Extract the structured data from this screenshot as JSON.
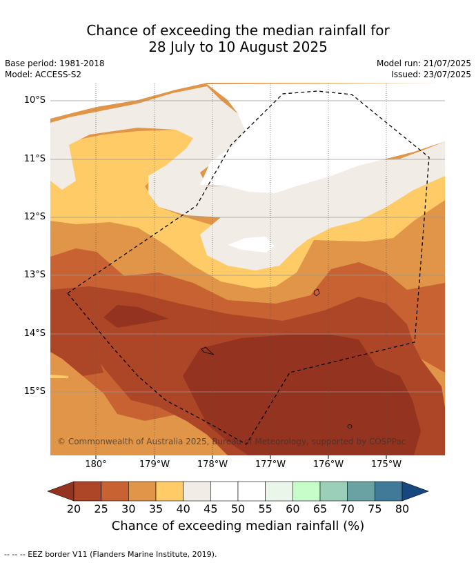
{
  "title": {
    "line1": "Chance of exceeding the median rainfall for",
    "line2": "28 July to 10 August 2025"
  },
  "meta": {
    "base_period": "Base period: 1981-2018",
    "model": "Model: ACCESS-S2",
    "model_run": "Model run: 21/07/2025",
    "issued": "Issued: 23/07/2025"
  },
  "map": {
    "lat_labels": [
      "10°S",
      "11°S",
      "12°S",
      "13°S",
      "14°S",
      "15°S"
    ],
    "lon_labels": [
      "180°",
      "179°W",
      "178°W",
      "177°W",
      "176°W",
      "175°W"
    ],
    "copyright": "© Commonwealth of Australia 2025, Bureau of Meteorology, supported by COSPPac"
  },
  "colorbar": {
    "ticks": [
      "20",
      "25",
      "30",
      "35",
      "40",
      "45",
      "50",
      "55",
      "60",
      "65",
      "70",
      "75",
      "80"
    ],
    "colors": [
      "#ad4627",
      "#c86232",
      "#e09548",
      "#fecb67",
      "#f1ece5",
      "#ffffff",
      "#ffffff",
      "#eaf6ea",
      "#c7fdc9",
      "#9bcfba",
      "#6aa2a3",
      "#407a98"
    ],
    "under_color": "#943420",
    "over_color": "#16487f",
    "title": "Chance of exceeding median rainfall (%)"
  },
  "footer": "--  --  -- EEZ border V11 (Flanders Marine Institute, 2019)."
}
